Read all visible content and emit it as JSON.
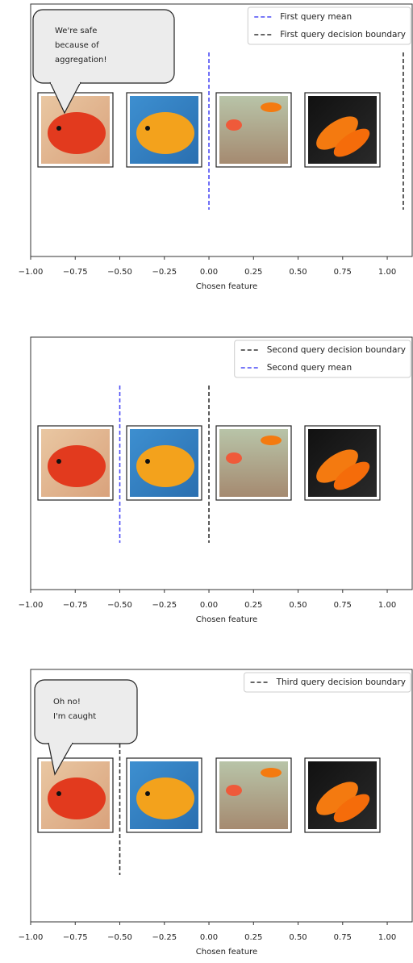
{
  "chart_data": [
    {
      "type": "vline",
      "xlabel": "Chosen feature",
      "xlim": [
        -1,
        1.14
      ],
      "xticks": [
        {
          "value": -1,
          "label": "−1.00"
        },
        {
          "value": -0.75,
          "label": "−0.75"
        },
        {
          "value": -0.5,
          "label": "−0.50"
        },
        {
          "value": -0.25,
          "label": "−0.25"
        },
        {
          "value": 0,
          "label": "0.00"
        },
        {
          "value": 0.25,
          "label": "0.25"
        },
        {
          "value": 0.5,
          "label": "0.50"
        },
        {
          "value": 0.75,
          "label": "0.75"
        },
        {
          "value": 1,
          "label": "1.00"
        }
      ],
      "legend": "upper right",
      "linestyle": "dashed",
      "series": [
        {
          "name": "First query mean",
          "color": "#4b4bf5",
          "x": 0
        },
        {
          "name": "First query decision boundary",
          "color": "#333333",
          "x": 1.09
        }
      ],
      "annotation": [
        "We're safe",
        "because of",
        "aggregation!"
      ]
    },
    {
      "type": "vline",
      "xlabel": "Chosen feature",
      "xlim": [
        -1,
        1.14
      ],
      "xticks": [
        {
          "value": -1,
          "label": "−1.00"
        },
        {
          "value": -0.75,
          "label": "−0.75"
        },
        {
          "value": -0.5,
          "label": "−0.50"
        },
        {
          "value": -0.25,
          "label": "−0.25"
        },
        {
          "value": 0,
          "label": "0.00"
        },
        {
          "value": 0.25,
          "label": "0.25"
        },
        {
          "value": 0.5,
          "label": "0.50"
        },
        {
          "value": 0.75,
          "label": "0.75"
        },
        {
          "value": 1,
          "label": "1.00"
        }
      ],
      "legend": "upper right",
      "linestyle": "dashed",
      "series": [
        {
          "name": "Second query decision boundary",
          "color": "#333333",
          "x": 0
        },
        {
          "name": "Second query mean",
          "color": "#4b4bf5",
          "x": -0.5
        }
      ]
    },
    {
      "type": "vline",
      "xlabel": "Chosen feature",
      "xlim": [
        -1,
        1.14
      ],
      "xticks": [
        {
          "value": -1,
          "label": "−1.00"
        },
        {
          "value": -0.75,
          "label": "−0.75"
        },
        {
          "value": -0.5,
          "label": "−0.50"
        },
        {
          "value": -0.25,
          "label": "−0.25"
        },
        {
          "value": 0,
          "label": "0.00"
        },
        {
          "value": 0.25,
          "label": "0.25"
        },
        {
          "value": 0.5,
          "label": "0.50"
        },
        {
          "value": 0.75,
          "label": "0.75"
        },
        {
          "value": 1,
          "label": "1.00"
        }
      ],
      "legend": "upper right",
      "linestyle": "dashed",
      "series": [
        {
          "name": "Third query decision boundary",
          "color": "#333333",
          "x": -0.5
        }
      ],
      "annotation": [
        "Oh no!",
        "I'm caught"
      ]
    }
  ]
}
